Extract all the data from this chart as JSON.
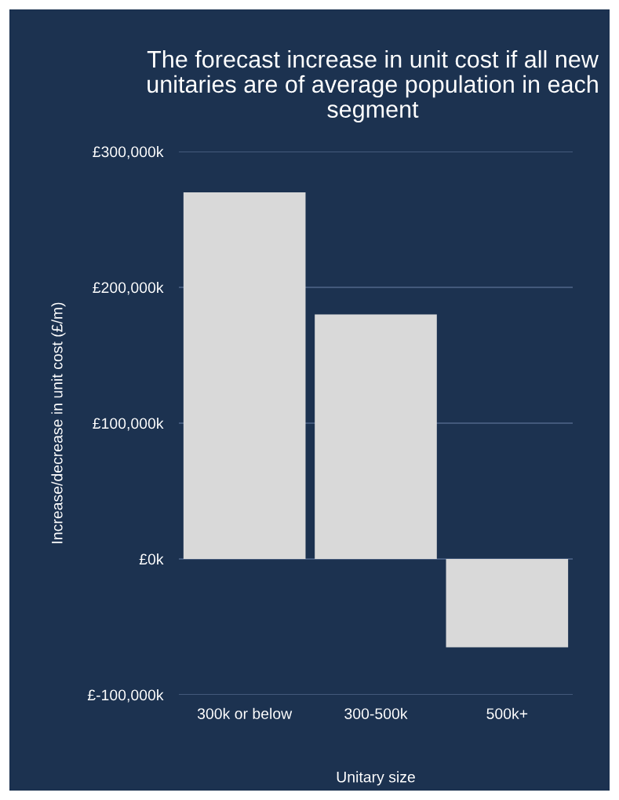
{
  "chart_data": {
    "type": "bar",
    "title": "The forecast increase in unit cost if all new unitaries are of average population in each segment",
    "xlabel": "Unitary size",
    "ylabel": "Increase/decrease in unit cost (£/m)",
    "categories": [
      "300k or below",
      "300-500k",
      "500k+"
    ],
    "values": [
      270000,
      180000,
      -65000
    ],
    "color": "#d9d9d9",
    "ylim": [
      -100000,
      300000
    ],
    "yticks": [
      {
        "value": -100000,
        "label": "£-100,000k"
      },
      {
        "value": 0,
        "label": "£0k"
      },
      {
        "value": 100000,
        "label": "£100,000k"
      },
      {
        "value": 200000,
        "label": "£200,000k"
      },
      {
        "value": 300000,
        "label": "£300,000k"
      }
    ],
    "grid": "y"
  }
}
